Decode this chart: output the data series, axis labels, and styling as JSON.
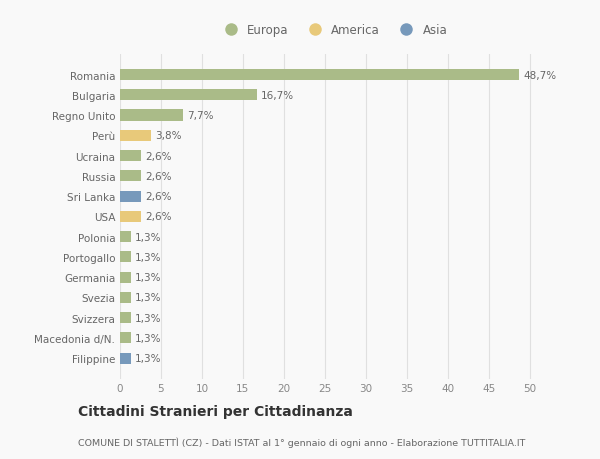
{
  "categories": [
    "Filippine",
    "Macedonia d/N.",
    "Svizzera",
    "Svezia",
    "Germania",
    "Portogallo",
    "Polonia",
    "USA",
    "Sri Lanka",
    "Russia",
    "Ucraina",
    "Perù",
    "Regno Unito",
    "Bulgaria",
    "Romania"
  ],
  "values": [
    1.3,
    1.3,
    1.3,
    1.3,
    1.3,
    1.3,
    1.3,
    2.6,
    2.6,
    2.6,
    2.6,
    3.8,
    7.7,
    16.7,
    48.7
  ],
  "colors": [
    "#7799bb",
    "#aabb88",
    "#aabb88",
    "#aabb88",
    "#aabb88",
    "#aabb88",
    "#aabb88",
    "#e8c97a",
    "#7799bb",
    "#aabb88",
    "#aabb88",
    "#e8c97a",
    "#aabb88",
    "#aabb88",
    "#aabb88"
  ],
  "labels": [
    "1,3%",
    "1,3%",
    "1,3%",
    "1,3%",
    "1,3%",
    "1,3%",
    "1,3%",
    "2,6%",
    "2,6%",
    "2,6%",
    "2,6%",
    "3,8%",
    "7,7%",
    "16,7%",
    "48,7%"
  ],
  "legend": [
    {
      "label": "Europa",
      "color": "#aabb88"
    },
    {
      "label": "America",
      "color": "#e8c97a"
    },
    {
      "label": "Asia",
      "color": "#7799bb"
    }
  ],
  "xlim": [
    0,
    52
  ],
  "xticks": [
    0,
    5,
    10,
    15,
    20,
    25,
    30,
    35,
    40,
    45,
    50
  ],
  "title": "Cittadini Stranieri per Cittadinanza",
  "subtitle": "COMUNE DI STALETTÌ (CZ) - Dati ISTAT al 1° gennaio di ogni anno - Elaborazione TUTTITALIA.IT",
  "background_color": "#f9f9f9",
  "grid_color": "#e0e0e0",
  "bar_height": 0.55,
  "label_fontsize": 7.5,
  "tick_fontsize": 7.5,
  "title_fontsize": 10,
  "subtitle_fontsize": 6.8
}
